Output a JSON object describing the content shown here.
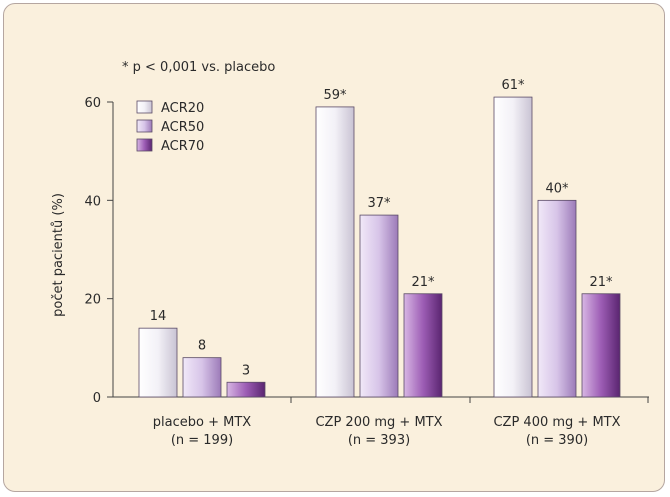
{
  "chart_data": {
    "type": "bar",
    "title": "",
    "note": "* p < 0,001 vs. placebo",
    "ylabel": "počet pacientů (%)",
    "xlabel": "",
    "ylim": [
      0,
      60
    ],
    "yticks": [
      0,
      20,
      40,
      60
    ],
    "categories": [
      {
        "line1": "placebo + MTX",
        "line2": "(n = 199)"
      },
      {
        "line1": "CZP 200 mg + MTX",
        "line2": "(n = 393)"
      },
      {
        "line1": "CZP 400 mg + MTX",
        "line2": "(n = 390)"
      }
    ],
    "series": [
      {
        "name": "ACR20",
        "values": [
          14,
          59,
          61
        ],
        "labels": [
          "14",
          "59*",
          "61*"
        ]
      },
      {
        "name": "ACR50",
        "values": [
          8,
          37,
          40
        ],
        "labels": [
          "8",
          "37*",
          "40*"
        ]
      },
      {
        "name": "ACR70",
        "values": [
          3,
          21,
          21
        ],
        "labels": [
          "3",
          "21*",
          "21*"
        ]
      }
    ],
    "legend_position": "top-left",
    "grid": false
  },
  "colors": {
    "ACR20": "#f5f3f8",
    "ACR50": "#cbb4df",
    "ACR70": "#8e4ea6",
    "background": "#faf0dd",
    "axis": "#444444"
  }
}
